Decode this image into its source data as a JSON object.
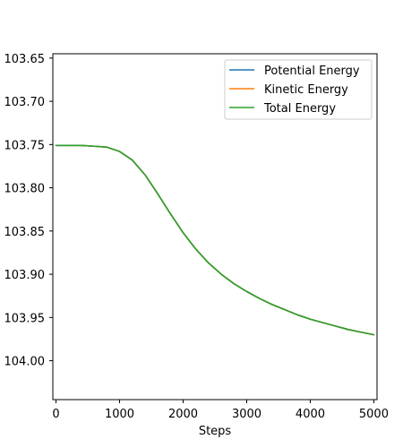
{
  "chart_data": {
    "type": "line",
    "title": "",
    "xlabel": "Steps",
    "ylabel": "",
    "xlim": [
      -50,
      5050
    ],
    "ylim": [
      -104.045,
      -103.645
    ],
    "y_tick_labels_negated": true,
    "x_ticks": [
      {
        "value": 0,
        "label": "0"
      },
      {
        "value": 1000,
        "label": "1000"
      },
      {
        "value": 2000,
        "label": "2000"
      },
      {
        "value": 3000,
        "label": "3000"
      },
      {
        "value": 4000,
        "label": "4000"
      },
      {
        "value": 5000,
        "label": "5000"
      }
    ],
    "y_ticks": [
      {
        "value": -103.65,
        "label": "103.65"
      },
      {
        "value": -103.7,
        "label": "103.70"
      },
      {
        "value": -103.75,
        "label": "103.75"
      },
      {
        "value": -103.8,
        "label": "103.80"
      },
      {
        "value": -103.85,
        "label": "103.85"
      },
      {
        "value": -103.9,
        "label": "103.90"
      },
      {
        "value": -103.95,
        "label": "103.95"
      },
      {
        "value": -104.0,
        "label": "104.00"
      }
    ],
    "grid": false,
    "legend_position": "top-right",
    "x": [
      0,
      200,
      400,
      600,
      800,
      1000,
      1200,
      1400,
      1600,
      1800,
      2000,
      2200,
      2400,
      2600,
      2800,
      3000,
      3200,
      3400,
      3600,
      3800,
      4000,
      4200,
      4400,
      4600,
      4800,
      5000
    ],
    "series": [
      {
        "name": "Potential Energy",
        "color": "#1f77b4",
        "values": [
          -103.751,
          -103.751,
          -103.751,
          -103.752,
          -103.753,
          -103.758,
          -103.768,
          -103.785,
          -103.807,
          -103.83,
          -103.852,
          -103.871,
          -103.887,
          -103.9,
          -103.911,
          -103.92,
          -103.928,
          -103.935,
          -103.941,
          -103.947,
          -103.952,
          -103.956,
          -103.96,
          -103.964,
          -103.967,
          -103.97
        ]
      },
      {
        "name": "Kinetic Energy",
        "color": "#ff7f0e",
        "values": [
          -103.751,
          -103.751,
          -103.751,
          -103.752,
          -103.753,
          -103.758,
          -103.768,
          -103.785,
          -103.807,
          -103.83,
          -103.852,
          -103.871,
          -103.887,
          -103.9,
          -103.911,
          -103.92,
          -103.928,
          -103.935,
          -103.941,
          -103.947,
          -103.952,
          -103.956,
          -103.96,
          -103.964,
          -103.967,
          -103.97
        ]
      },
      {
        "name": "Total Energy",
        "color": "#2ca02c",
        "values": [
          -103.751,
          -103.751,
          -103.751,
          -103.752,
          -103.753,
          -103.758,
          -103.768,
          -103.785,
          -103.807,
          -103.83,
          -103.852,
          -103.871,
          -103.887,
          -103.9,
          -103.911,
          -103.92,
          -103.928,
          -103.935,
          -103.941,
          -103.947,
          -103.952,
          -103.956,
          -103.96,
          -103.964,
          -103.967,
          -103.97
        ]
      }
    ]
  }
}
